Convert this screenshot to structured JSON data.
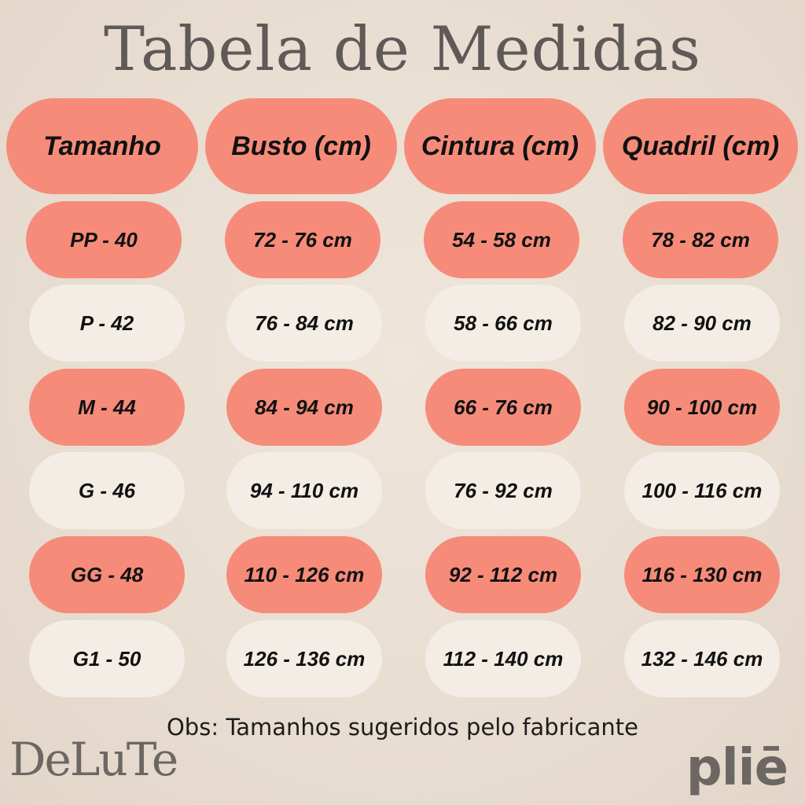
{
  "title": "Tabela de Medidas",
  "headers": [
    "Tamanho",
    "Busto (cm)",
    "Cintura (cm)",
    "Quadril (cm)"
  ],
  "rows": [
    [
      "PP - 40",
      "72 - 76 cm",
      "54 - 58 cm",
      "78 - 82 cm"
    ],
    [
      "P - 42",
      "76 - 84 cm",
      "58 - 66 cm",
      "82 - 90 cm"
    ],
    [
      "M - 44",
      "84 - 94 cm",
      "66 - 76 cm",
      "90 - 100 cm"
    ],
    [
      "G - 46",
      "94 - 110 cm",
      "76 - 92 cm",
      "100 - 116 cm"
    ],
    [
      "GG - 48",
      "110 - 126 cm",
      "92 - 112 cm",
      "116 - 130 cm"
    ],
    [
      "G1 - 50",
      "126 - 136 cm",
      "112 - 140 cm",
      "132 - 146 cm"
    ]
  ],
  "note": "Obs: Tamanhos sugeridos pelo fabricante",
  "brands": {
    "left": "DeLuTe",
    "right": "pliē"
  },
  "colors": {
    "salmon": "#f68b7a",
    "cream": "#f3ede6",
    "title": "#5f5a57"
  }
}
